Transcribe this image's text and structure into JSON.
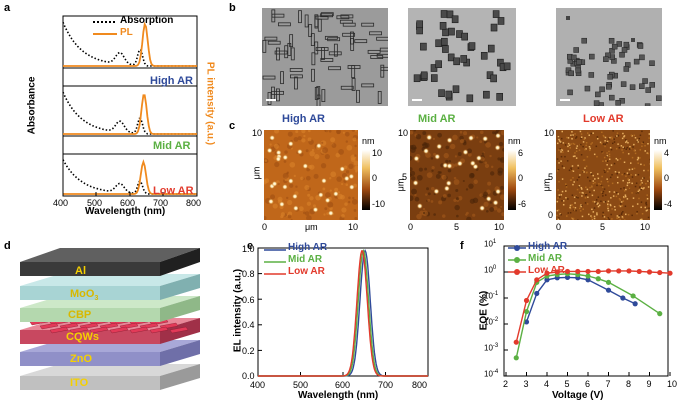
{
  "panels": {
    "a": "a",
    "b": "b",
    "c": "c",
    "d": "d",
    "e": "e",
    "f": "f"
  },
  "colors": {
    "high": "#2f4a9a",
    "mid": "#5bb043",
    "low": "#e23a2c",
    "pl": "#f08a1e"
  },
  "panel_a": {
    "legend_absorption": "Absorption",
    "legend_pl": "PL",
    "labels": [
      "High AR",
      "Mid AR",
      "Low AR"
    ],
    "ylabel_left": "Absorbance",
    "ylabel_right": "PL intensity (a.u.)",
    "xlabel": "Wavelength (nm)",
    "xticks": [
      "400",
      "500",
      "600",
      "700",
      "800"
    ]
  },
  "panel_b": {
    "headers": [
      "High AR",
      "Mid AR",
      "Low AR"
    ]
  },
  "panel_c": {
    "axis_unit": "μm",
    "ticks": [
      "0",
      "5",
      "10"
    ],
    "colorbar_unit": "nm",
    "colorbars": [
      {
        "ticks": [
          "10",
          "0",
          "-10"
        ]
      },
      {
        "ticks": [
          "6",
          "0",
          "-6"
        ]
      },
      {
        "ticks": [
          "4",
          "0",
          "-4"
        ]
      }
    ]
  },
  "panel_d": {
    "layers": [
      "Al",
      "MoO3",
      "CBP",
      "CQWs",
      "ZnO",
      "ITO"
    ]
  },
  "panel_e": {
    "legend": [
      "High AR",
      "Mid AR",
      "Low AR"
    ],
    "ylabel": "EL intensity (a.u.)",
    "xlabel": "Wavelength (nm)",
    "xticks": [
      "400",
      "500",
      "600",
      "700",
      "800"
    ],
    "yticks": [
      "0.0",
      "0.2",
      "0.4",
      "0.6",
      "0.8",
      "1.0"
    ]
  },
  "panel_f": {
    "legend": [
      "High AR",
      "Mid AR",
      "Low AR"
    ],
    "ylabel": "EQE (%)",
    "xlabel": "Voltage (V)",
    "xticks": [
      "2",
      "3",
      "4",
      "5",
      "6",
      "7",
      "8",
      "9",
      "10"
    ],
    "yticks": [
      "10",
      "10",
      "10",
      "10",
      "10",
      "10"
    ],
    "yexp": [
      "1",
      "0",
      "-1",
      "-2",
      "-3",
      "-4"
    ]
  },
  "chart_data": [
    {
      "type": "line",
      "chart": "panel_e",
      "x": [
        400,
        500,
        600,
        620,
        640,
        650,
        660,
        680,
        700,
        800
      ],
      "series": [
        {
          "name": "High AR",
          "peak": 652
        },
        {
          "name": "Mid AR",
          "peak": 648
        },
        {
          "name": "Low AR",
          "peak": 645
        }
      ],
      "xlabel": "Wavelength (nm)",
      "ylabel": "EL intensity (a.u.)",
      "xlim": [
        400,
        800
      ],
      "ylim": [
        0,
        1.0
      ]
    },
    {
      "type": "line",
      "chart": "panel_f",
      "xlabel": "Voltage (V)",
      "ylabel": "EQE (%)",
      "xlim": [
        2,
        10
      ],
      "ylog": true,
      "series": [
        {
          "name": "High AR",
          "x": [
            3.0,
            3.5,
            4.0,
            4.5,
            5.0,
            5.5,
            6.0,
            7.0,
            7.7,
            8.3
          ],
          "y": [
            0.012,
            0.15,
            0.5,
            0.6,
            0.62,
            0.6,
            0.5,
            0.2,
            0.1,
            0.06
          ]
        },
        {
          "name": "Mid AR",
          "x": [
            2.5,
            3.0,
            3.5,
            4.0,
            4.5,
            5.0,
            5.5,
            6.0,
            6.5,
            7.0,
            8.2,
            9.5
          ],
          "y": [
            0.0005,
            0.03,
            0.4,
            0.7,
            0.8,
            0.85,
            0.8,
            0.7,
            0.55,
            0.4,
            0.12,
            0.025
          ]
        },
        {
          "name": "Low AR",
          "x": [
            2.5,
            3.0,
            3.5,
            4.0,
            4.5,
            5.0,
            5.5,
            6.0,
            6.5,
            7.0,
            7.5,
            8.0,
            8.5,
            9.0,
            9.5,
            10.0
          ],
          "y": [
            0.002,
            0.08,
            0.5,
            0.9,
            1.0,
            1.05,
            1.05,
            1.05,
            1.05,
            1.1,
            1.1,
            1.1,
            1.05,
            1.0,
            0.95,
            0.9
          ]
        }
      ]
    }
  ]
}
